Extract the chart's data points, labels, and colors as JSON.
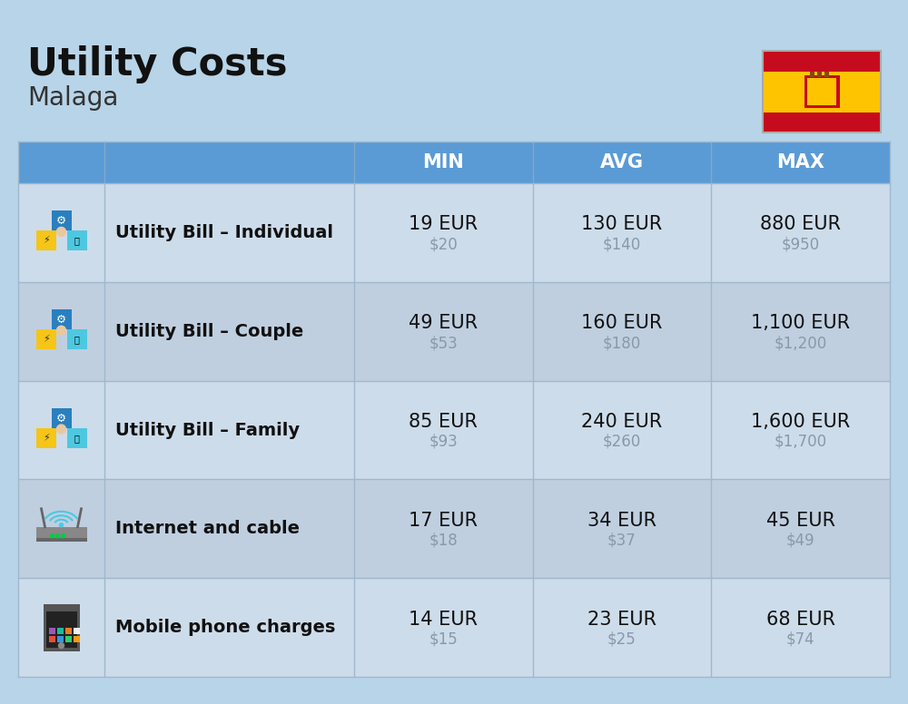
{
  "title": "Utility Costs",
  "subtitle": "Malaga",
  "background_color": "#b8d4e8",
  "header_bg_color": "#5b9bd5",
  "header_text_color": "#ffffff",
  "row_bg_color_1": "#cddcea",
  "row_bg_color_2": "#bfcfe0",
  "cell_border_color": "#a0b8cc",
  "rows": [
    {
      "label": "Utility Bill – Individual",
      "min_eur": "19 EUR",
      "min_usd": "$20",
      "avg_eur": "130 EUR",
      "avg_usd": "$140",
      "max_eur": "880 EUR",
      "max_usd": "$950"
    },
    {
      "label": "Utility Bill – Couple",
      "min_eur": "49 EUR",
      "min_usd": "$53",
      "avg_eur": "160 EUR",
      "avg_usd": "$180",
      "max_eur": "1,100 EUR",
      "max_usd": "$1,200"
    },
    {
      "label": "Utility Bill – Family",
      "min_eur": "85 EUR",
      "min_usd": "$93",
      "avg_eur": "240 EUR",
      "avg_usd": "$260",
      "max_eur": "1,600 EUR",
      "max_usd": "$1,700"
    },
    {
      "label": "Internet and cable",
      "min_eur": "17 EUR",
      "min_usd": "$18",
      "avg_eur": "34 EUR",
      "avg_usd": "$37",
      "max_eur": "45 EUR",
      "max_usd": "$49"
    },
    {
      "label": "Mobile phone charges",
      "min_eur": "14 EUR",
      "min_usd": "$15",
      "avg_eur": "23 EUR",
      "avg_usd": "$25",
      "max_eur": "68 EUR",
      "max_usd": "$74"
    }
  ],
  "title_fontsize": 30,
  "subtitle_fontsize": 20,
  "header_fontsize": 15,
  "label_fontsize": 14,
  "value_fontsize": 15,
  "usd_fontsize": 12,
  "usd_color": "#8899aa",
  "label_color": "#111111",
  "value_color": "#111111",
  "flag_red": "#c60b1e",
  "flag_yellow": "#ffc400"
}
